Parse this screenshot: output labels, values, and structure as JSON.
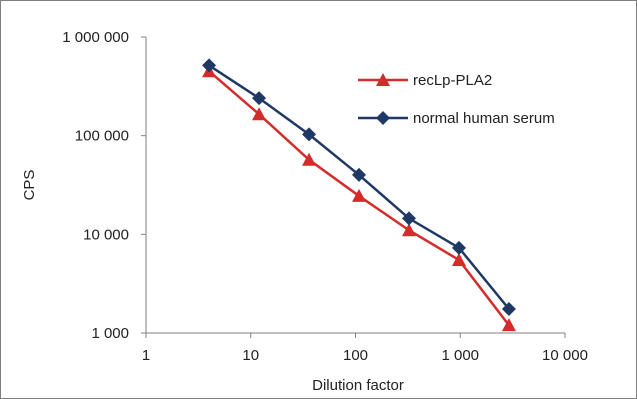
{
  "chart_data": {
    "type": "line",
    "xlabel": "Dilution factor",
    "ylabel": "CPS",
    "x_scale": "log",
    "y_scale": "log",
    "xlim": [
      1,
      10000
    ],
    "ylim": [
      1000,
      1000000
    ],
    "x_ticks": [
      1,
      10,
      100,
      1000,
      10000
    ],
    "y_ticks": [
      1000,
      10000,
      100000,
      1000000
    ],
    "x_tick_labels": [
      "1",
      "10",
      "100",
      "1 000",
      "10 000"
    ],
    "y_tick_labels": [
      "1 000",
      "10 000",
      "100 000",
      "1 000 000"
    ],
    "grid": false,
    "legend_position": "top-right",
    "series": [
      {
        "name": "recLp-PLA2",
        "color": "#d62b2b",
        "marker": "triangle",
        "x": [
          4,
          12,
          36,
          108,
          324,
          972,
          2916
        ],
        "y": [
          450000,
          165000,
          57000,
          24500,
          11000,
          5500,
          1200
        ]
      },
      {
        "name": "normal human serum",
        "color": "#1f3864",
        "marker": "diamond",
        "x": [
          4,
          12,
          36,
          108,
          324,
          972,
          2916
        ],
        "y": [
          515000,
          240000,
          103000,
          40000,
          14500,
          7300,
          1750
        ]
      }
    ]
  }
}
